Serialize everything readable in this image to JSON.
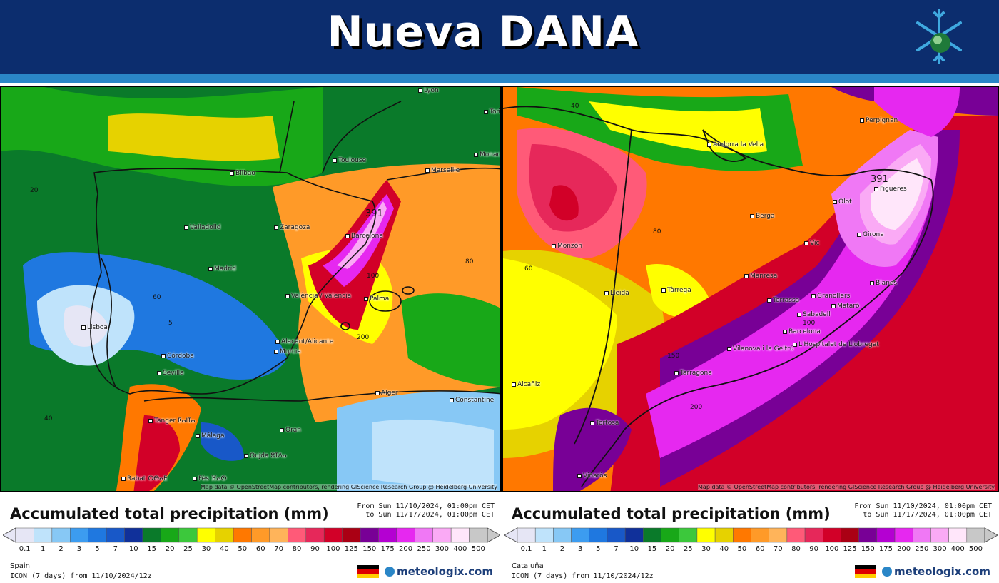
{
  "header": {
    "title": "Nueva DANA",
    "logo_icon": "snowflake-globe-icon"
  },
  "map_credit": "Map data © OpenStreetMap contributors, rendering GIScience Research Group @ Heidelberg University",
  "maps": [
    {
      "id": "spain",
      "cities": [
        "Lyon",
        "Torin",
        "Monaco",
        "Toulouse",
        "Marseille",
        "Bilbao",
        "Valladolid",
        "Zaragoza",
        "Barcelona",
        "Madrid",
        "València / Valencia",
        "Palma",
        "Lisboa",
        "Alacant/Alicante",
        "Murcia",
        "Córdoba",
        "Sevilla",
        "Málaga",
        "Tanger ⵟⴰⵏⵊⴰ",
        "Alger",
        "Constantine",
        "Oran",
        "Oujda ⵓⵊⴷⴰ",
        "Rabat ⵔⴱⴰⵟ",
        "Fès ⴼⴰⵙ"
      ],
      "contour_labels": [
        "20",
        "40",
        "60",
        "80",
        "391",
        "100",
        "200",
        "5"
      ]
    },
    {
      "id": "cataluna",
      "cities": [
        "Perpignan",
        "Andorra la Vella",
        "Figueres",
        "Olot",
        "Berga",
        "Girona",
        "Vic",
        "Monzón",
        "Manresa",
        "Lleida",
        "Tàrrega",
        "Blanes",
        "Granollers",
        "Terrassa",
        "Mataró",
        "Sabadell",
        "Barcelona",
        "Vilanova i la Geltrú",
        "L'Hospitalet de Llobregat",
        "Tarragona",
        "Alcañiz",
        "Tortosa",
        "Vinaròs"
      ],
      "contour_labels": [
        "40",
        "60",
        "80",
        "100",
        "150",
        "200",
        "391"
      ]
    }
  ],
  "legends": [
    {
      "title": "Accumulated total precipitation (mm)",
      "from": "From Sun 11/10/2024, 01:00pm CET",
      "to": "to Sun 11/17/2024, 01:00pm CET",
      "region": "Spain",
      "model": "ICON (7 days) from 11/10/2024/12z",
      "brand": "meteologix.com"
    },
    {
      "title": "Accumulated total precipitation (mm)",
      "from": "From Sun 11/10/2024, 01:00pm CET",
      "to": "to Sun 11/17/2024, 01:00pm CET",
      "region": "Cataluña",
      "model": "ICON (7 days) from 11/10/2024/12z",
      "brand": "meteologix.com"
    }
  ],
  "scale": {
    "ticks": [
      "0.1",
      "1",
      "2",
      "3",
      "5",
      "7",
      "10",
      "15",
      "20",
      "25",
      "30",
      "40",
      "50",
      "60",
      "70",
      "80",
      "90",
      "100",
      "125",
      "150",
      "175",
      "200",
      "250",
      "300",
      "400",
      "500"
    ],
    "colors": [
      "#e6e6f5",
      "#bfe3fb",
      "#87c8f5",
      "#3c9cf0",
      "#1f78e0",
      "#1858c8",
      "#10309a",
      "#0a7a2a",
      "#18a818",
      "#3cc83c",
      "#ffff00",
      "#e6d200",
      "#ff7800",
      "#ff9a28",
      "#ffb45a",
      "#ff5a78",
      "#e6285a",
      "#d20028",
      "#aa0014",
      "#780096",
      "#b400d2",
      "#e628f0",
      "#f078f5",
      "#faaaf5",
      "#ffe6fa",
      "#c8c8c8"
    ]
  }
}
